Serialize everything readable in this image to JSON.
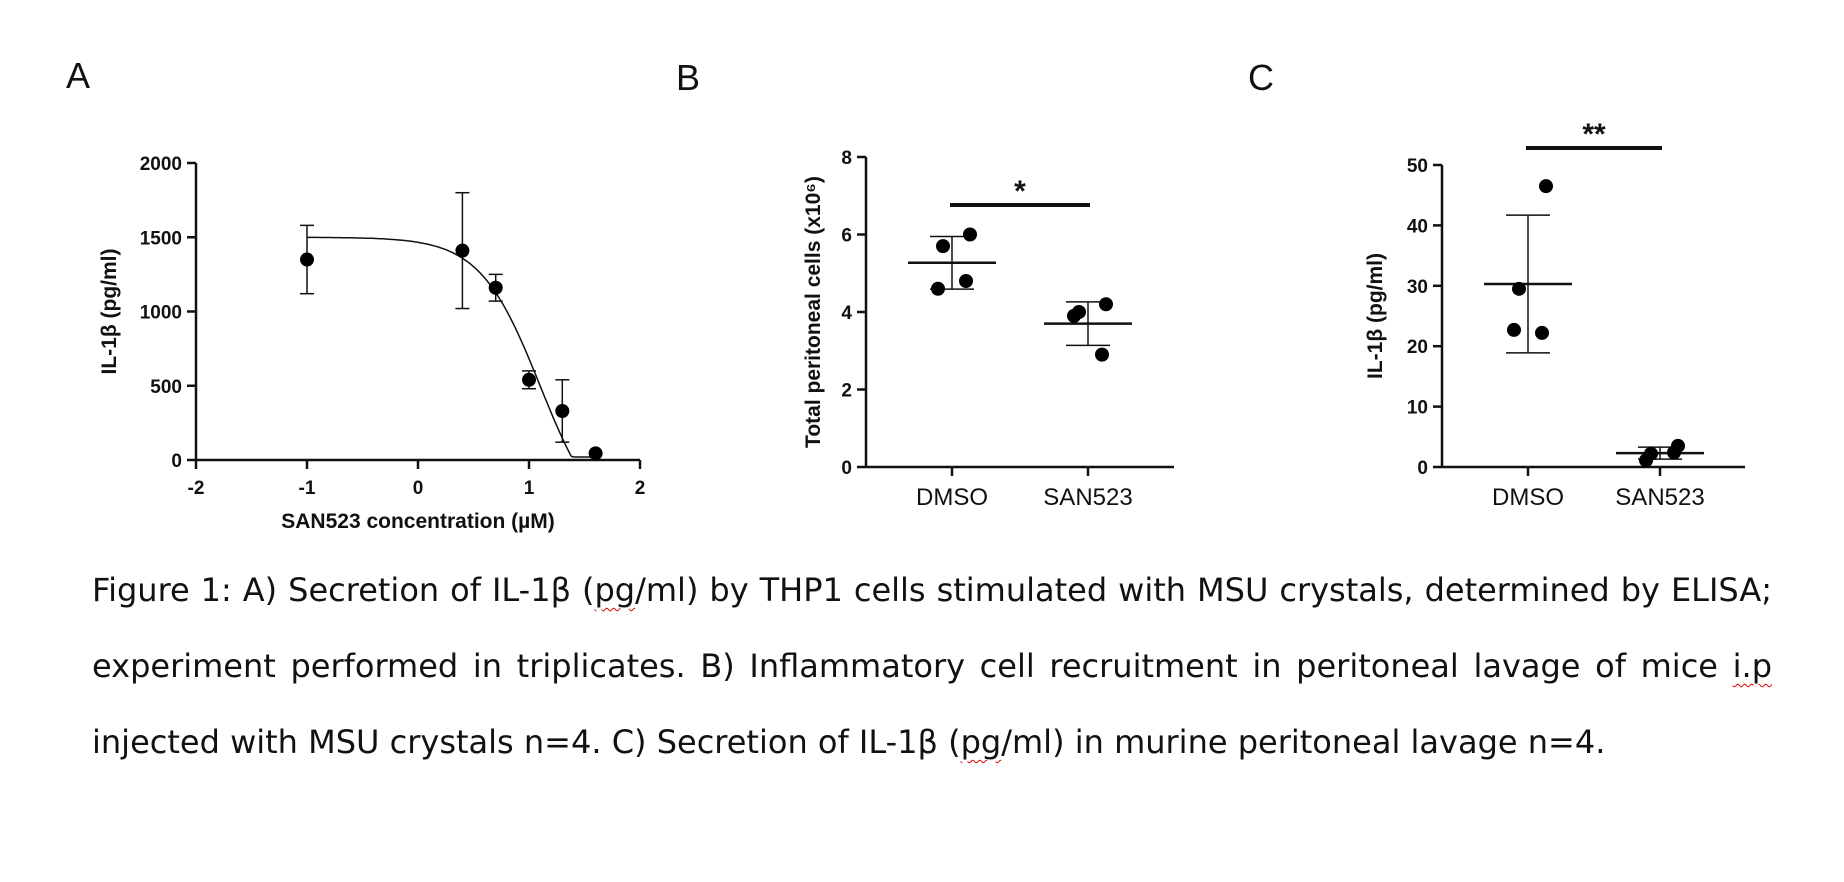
{
  "chart_data": [
    {
      "panel": "A",
      "type": "scatter",
      "xlabel": "SAN523 concentration (µM)",
      "ylabel": "IL-1β (pg/ml)",
      "xlim": [
        -2,
        2
      ],
      "ylim": [
        0,
        2000
      ],
      "x_ticks": [
        "-2",
        "-1",
        "0",
        "1",
        "2"
      ],
      "y_ticks": [
        "0",
        "500",
        "1000",
        "1500",
        "2000"
      ],
      "points": [
        {
          "x": -1.0,
          "y": 1350,
          "err": 230
        },
        {
          "x": 0.4,
          "y": 1410,
          "err": 390
        },
        {
          "x": 0.7,
          "y": 1160,
          "err": 90
        },
        {
          "x": 1.0,
          "y": 540,
          "err": 60
        },
        {
          "x": 1.3,
          "y": 330,
          "err": 210
        },
        {
          "x": 1.6,
          "y": 45,
          "err": 0
        }
      ],
      "fit": {
        "type": "dose-response",
        "top": 1500,
        "bottom": -500,
        "logIC50": 1.1,
        "hill": 1.6
      }
    },
    {
      "panel": "B",
      "type": "scatter",
      "ylabel": "Total peritoneal cells (x10⁶)",
      "ylim": [
        0,
        8
      ],
      "y_ticks": [
        "0",
        "2",
        "4",
        "6",
        "8"
      ],
      "categories": [
        "DMSO",
        "SAN523"
      ],
      "groups": [
        {
          "category": "DMSO",
          "values": [
            6.0,
            5.7,
            4.6,
            4.8
          ],
          "mean": 5.27,
          "sd": 0.68
        },
        {
          "category": "SAN523",
          "values": [
            4.2,
            4.0,
            3.9,
            2.9
          ],
          "mean": 3.7,
          "sd": 0.56
        }
      ],
      "significance": "*"
    },
    {
      "panel": "C",
      "type": "scatter",
      "ylabel": "IL-1β (pg/ml)",
      "ylim": [
        0,
        50
      ],
      "y_ticks": [
        "0",
        "10",
        "20",
        "30",
        "40",
        "50"
      ],
      "categories": [
        "DMSO",
        "SAN523"
      ],
      "groups": [
        {
          "category": "DMSO",
          "values": [
            46.5,
            29.5,
            22.7,
            22.2
          ],
          "mean": 30.3,
          "sd": 11.4
        },
        {
          "category": "SAN523",
          "values": [
            3.5,
            2.2,
            1.1,
            2.4
          ],
          "mean": 2.3,
          "sd": 1.0
        }
      ],
      "significance": "**"
    }
  ],
  "caption": {
    "parts": [
      {
        "text": "Figure 1: A) Secretion of IL-1β ("
      },
      {
        "text": "pg",
        "flag": true
      },
      {
        "text": "/ml) by THP1 cells stimulated with MSU crystals, determined by ELISA; experiment performed in triplicates. B) Inflammatory cell recruitment in peritoneal lavage of mice "
      },
      {
        "text": "i.p",
        "flag": true
      },
      {
        "text": " injected with MSU crystals n=4. C) Secretion of IL-1β ("
      },
      {
        "text": "pg",
        "flag": true
      },
      {
        "text": "/ml) in murine peritoneal lavage n=4."
      }
    ]
  }
}
